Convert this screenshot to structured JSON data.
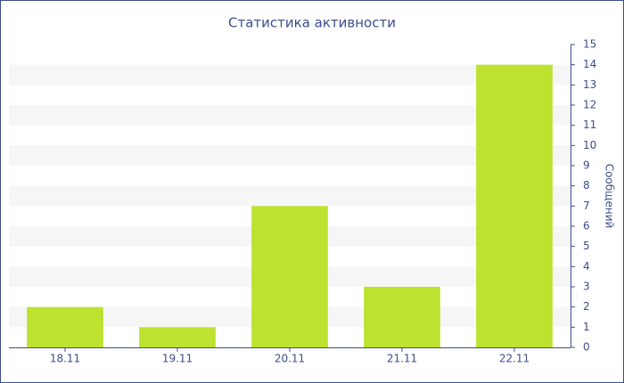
{
  "chart_data": {
    "type": "bar",
    "title": "Статистика активности",
    "y_label": "Сообщений",
    "categories": [
      "18.11",
      "19.11",
      "20.11",
      "21.11",
      "22.11"
    ],
    "values": [
      2,
      1,
      7,
      3,
      14
    ],
    "color": "#bde22f",
    "ylim": [
      0,
      15
    ],
    "yticks": [
      0,
      1,
      2,
      3,
      4,
      5,
      6,
      7,
      8,
      9,
      10,
      11,
      12,
      13,
      14,
      15
    ],
    "grid": "bands",
    "y_axis_side": "right"
  }
}
